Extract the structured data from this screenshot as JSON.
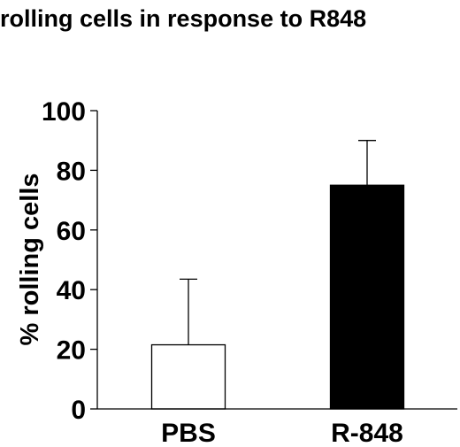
{
  "chart_data": {
    "type": "bar",
    "title": "rolling cells in response to R848",
    "xlabel": "",
    "ylabel": "% rolling cells",
    "categories": [
      "PBS",
      "R-848"
    ],
    "values": [
      21.5,
      75
    ],
    "error_upper": [
      43.5,
      90
    ],
    "bar_colors": [
      "#ffffff",
      "#000000"
    ],
    "ylim": [
      0,
      100
    ],
    "yticks": [
      0,
      20,
      40,
      60,
      80,
      100
    ],
    "grid": false,
    "legend": "none"
  }
}
